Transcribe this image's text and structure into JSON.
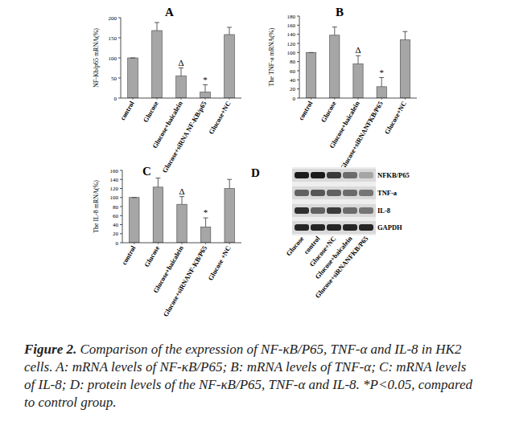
{
  "chart_data": [
    {
      "type": "bar",
      "title": "A",
      "y_label": "NF-Kb/p65 mRNA(%)",
      "categories": [
        "control",
        "Glucose",
        "Glucose+baicalein",
        "Glucose+siRNA NF-KB/p65",
        "Glucose+NC"
      ],
      "values": [
        100,
        168,
        55,
        15,
        158
      ],
      "errors": [
        0,
        20,
        20,
        18,
        18
      ],
      "annotations": [
        null,
        null,
        "Δ",
        "*",
        null
      ],
      "color": "#a6a6a6",
      "ylim": [
        0,
        200
      ],
      "yticks": [
        0,
        50,
        100,
        150,
        200
      ],
      "grid": false
    },
    {
      "type": "bar",
      "title": "B",
      "y_label": "The TNF-a mRNA(%)",
      "categories": [
        "control",
        "Glucose",
        "Glucose+baicalein",
        "Glucose+siRNANFKB/P65",
        "Glucose+NC"
      ],
      "values": [
        100,
        138,
        75,
        25,
        128
      ],
      "errors": [
        0,
        18,
        18,
        20,
        18
      ],
      "annotations": [
        null,
        null,
        "Δ",
        "*",
        null
      ],
      "color": "#a6a6a6",
      "ylim": [
        0,
        180
      ],
      "yticks": [
        0,
        20,
        40,
        60,
        80,
        100,
        120,
        140,
        160,
        180
      ],
      "grid": false
    },
    {
      "type": "bar",
      "title": "C",
      "y_label": "The IL-8 mRNA(%)",
      "categories": [
        "control",
        "Glucose",
        "Glucose+baicalein",
        "Glucose+siRNANF-KB/P65",
        "Glucose +NC"
      ],
      "values": [
        100,
        123,
        85,
        35,
        120
      ],
      "errors": [
        0,
        20,
        17,
        20,
        20
      ],
      "annotations": [
        null,
        null,
        "Δ",
        "*",
        null
      ],
      "color": "#a6a6a6",
      "ylim": [
        0,
        160
      ],
      "yticks": [
        0,
        20,
        40,
        60,
        80,
        100,
        120,
        140,
        160
      ],
      "grid": false
    }
  ],
  "blot": {
    "title": "D",
    "lanes": [
      "Glucose",
      "control",
      "Glucose+NC",
      "Glucose+baicalein",
      "Glucose+siRNANFKB/P65"
    ],
    "rows": [
      {
        "name": "NFKB/P65",
        "levels": [
          0.95,
          0.95,
          0.8,
          0.55,
          0.25
        ]
      },
      {
        "name": "TNF-a",
        "levels": [
          0.6,
          0.65,
          0.6,
          0.55,
          0.5
        ]
      },
      {
        "name": "IL-8",
        "levels": [
          0.85,
          0.6,
          0.8,
          0.55,
          0.5
        ]
      },
      {
        "name": "GAPDH",
        "levels": [
          0.9,
          0.9,
          0.9,
          0.9,
          0.9
        ]
      }
    ]
  },
  "caption": {
    "label": "Figure 2.",
    "text": "Comparison of the expression of NF-κB/P65, TNF-α and IL-8 in HK2 cells. A: mRNA levels of NF-κB/P65; B: mRNA levels of TNF-α; C: mRNA levels of IL-8; D: protein levels of the NF-κB/P65, TNF-α and IL-8. *P<0.05, compared to control group."
  }
}
